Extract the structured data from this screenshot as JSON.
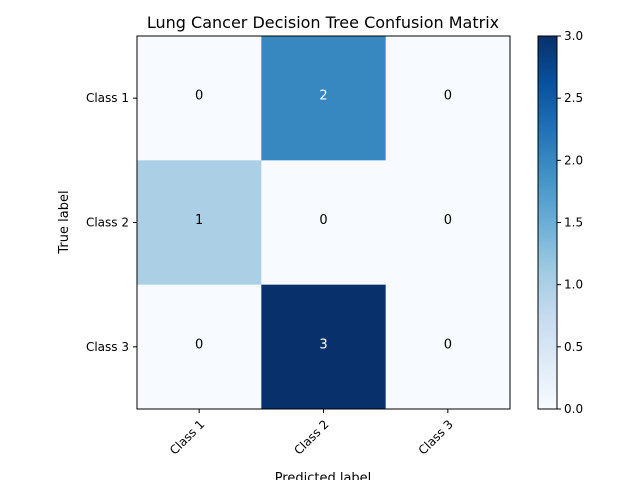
{
  "chart_data": {
    "type": "heatmap",
    "title": "Lung Cancer Decision Tree Confusion Matrix",
    "xlabel": "Predicted label",
    "ylabel": "True label",
    "x_categories": [
      "Class 1",
      "Class 2",
      "Class 3"
    ],
    "y_categories": [
      "Class 1",
      "Class 2",
      "Class 3"
    ],
    "values": [
      [
        0,
        2,
        0
      ],
      [
        1,
        0,
        0
      ],
      [
        0,
        3,
        0
      ]
    ],
    "colormap": "Blues",
    "vmin": 0,
    "vmax": 3,
    "colorbar_ticks": [
      "0.0",
      "0.5",
      "1.0",
      "1.5",
      "2.0",
      "2.5",
      "3.0"
    ]
  }
}
